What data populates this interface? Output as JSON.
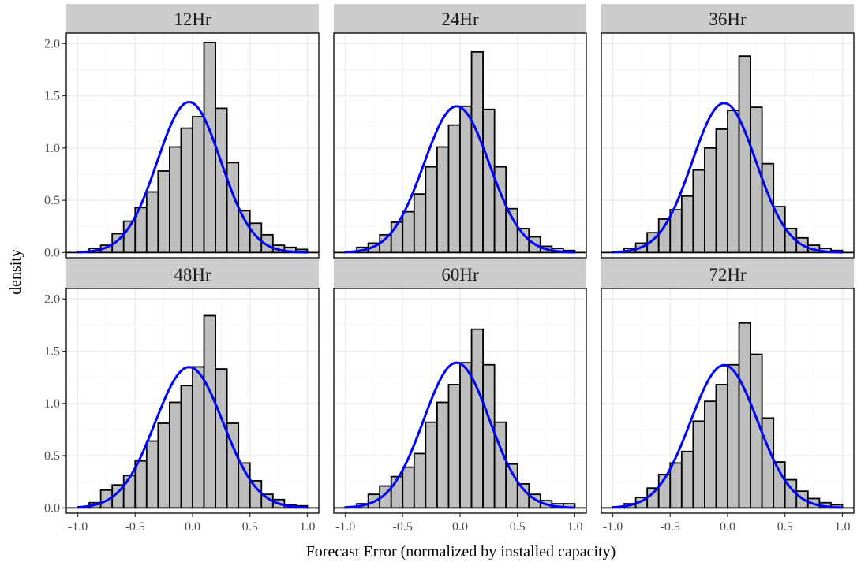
{
  "chart_data": {
    "type": "histogram-facets",
    "xlabel": "Forecast Error (normalized by installed capacity)",
    "ylabel": "density",
    "xlim": [
      -1.1,
      1.1
    ],
    "ylim": [
      -0.05,
      2.1
    ],
    "x_ticks": [
      "-1.0",
      "-0.5",
      "0.0",
      "0.5",
      "1.0"
    ],
    "x_tick_values": [
      -1.0,
      -0.5,
      0.0,
      0.5,
      1.0
    ],
    "y_ticks": [
      "0.0",
      "0.5",
      "1.0",
      "1.5",
      "2.0"
    ],
    "y_tick_values": [
      0.0,
      0.5,
      1.0,
      1.5,
      2.0
    ],
    "bin_width": 0.1,
    "bin_centers": [
      -1.05,
      -0.95,
      -0.85,
      -0.75,
      -0.65,
      -0.55,
      -0.45,
      -0.35,
      -0.25,
      -0.15,
      -0.05,
      0.05,
      0.15,
      0.25,
      0.35,
      0.45,
      0.55,
      0.65,
      0.75,
      0.85,
      0.95,
      1.05
    ],
    "grid": true,
    "colors": {
      "bar_fill": "#bebebe",
      "bar_stroke": "#000000",
      "curve": "#0000ff",
      "strip_bg": "#cccccc",
      "grid_major": "#ebebeb",
      "grid_minor": "#f5f5f5"
    },
    "panels": [
      {
        "title": "12Hr",
        "density": [
          0.0,
          0.01,
          0.04,
          0.07,
          0.18,
          0.3,
          0.43,
          0.58,
          0.78,
          1.01,
          1.19,
          1.3,
          2.01,
          1.38,
          0.86,
          0.4,
          0.28,
          0.17,
          0.07,
          0.05,
          0.03,
          0.0
        ],
        "normal": {
          "mean": -0.03,
          "sd": 0.277
        }
      },
      {
        "title": "24Hr",
        "density": [
          0.0,
          0.01,
          0.05,
          0.09,
          0.17,
          0.29,
          0.39,
          0.56,
          0.82,
          1.01,
          1.22,
          1.4,
          1.92,
          1.37,
          0.82,
          0.42,
          0.23,
          0.15,
          0.06,
          0.04,
          0.02,
          0.0
        ],
        "normal": {
          "mean": -0.03,
          "sd": 0.285
        }
      },
      {
        "title": "36Hr",
        "density": [
          0.0,
          0.01,
          0.04,
          0.09,
          0.19,
          0.32,
          0.41,
          0.54,
          0.79,
          1.0,
          1.18,
          1.36,
          1.88,
          1.39,
          0.85,
          0.44,
          0.23,
          0.14,
          0.07,
          0.04,
          0.02,
          0.0
        ],
        "normal": {
          "mean": -0.03,
          "sd": 0.279
        }
      },
      {
        "title": "48Hr",
        "density": [
          0.0,
          0.01,
          0.05,
          0.17,
          0.22,
          0.31,
          0.45,
          0.64,
          0.81,
          1.01,
          1.17,
          1.35,
          1.84,
          1.33,
          0.81,
          0.43,
          0.26,
          0.13,
          0.08,
          0.03,
          0.02,
          0.0
        ],
        "normal": {
          "mean": -0.03,
          "sd": 0.296
        }
      },
      {
        "title": "60Hr",
        "density": [
          0.0,
          0.01,
          0.04,
          0.13,
          0.21,
          0.3,
          0.39,
          0.52,
          0.82,
          1.01,
          1.18,
          1.39,
          1.71,
          1.37,
          0.82,
          0.42,
          0.23,
          0.13,
          0.07,
          0.04,
          0.04,
          0.0
        ],
        "normal": {
          "mean": -0.03,
          "sd": 0.287
        }
      },
      {
        "title": "72Hr",
        "density": [
          0.0,
          0.01,
          0.04,
          0.1,
          0.19,
          0.32,
          0.43,
          0.54,
          0.83,
          1.02,
          1.18,
          1.37,
          1.77,
          1.47,
          0.86,
          0.44,
          0.27,
          0.16,
          0.09,
          0.05,
          0.03,
          0.0
        ],
        "normal": {
          "mean": -0.03,
          "sd": 0.292
        }
      }
    ]
  }
}
